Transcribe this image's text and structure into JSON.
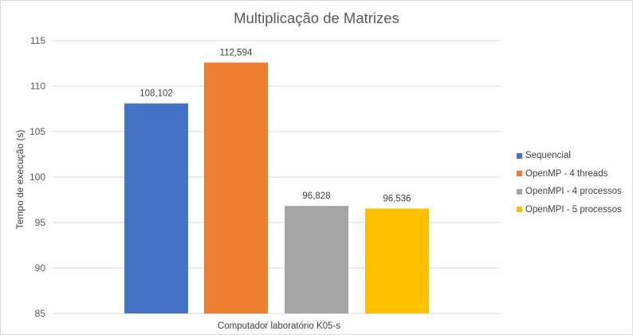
{
  "chart_data": {
    "type": "bar",
    "title": "Multiplicação de Matrizes",
    "xlabel": "",
    "ylabel": "Tempo de execução (s)",
    "categories": [
      "Computador laboratório K05-s"
    ],
    "series": [
      {
        "name": "Sequencial",
        "values": [
          108.102
        ],
        "label": "108,102",
        "color": "#4472C4"
      },
      {
        "name": "OpenMP - 4 threads",
        "values": [
          112.594
        ],
        "label": "112,594",
        "color": "#ED7D31"
      },
      {
        "name": "OpenMPI - 4 processos",
        "values": [
          96.828
        ],
        "label": "96,828",
        "color": "#A5A5A5"
      },
      {
        "name": "OpenMPI - 5 processos",
        "values": [
          96.536
        ],
        "label": "96,536",
        "color": "#FFC000"
      }
    ],
    "ylim": [
      85,
      115
    ],
    "yticks": [
      85,
      90,
      95,
      100,
      105,
      110,
      115
    ],
    "grid": true,
    "legend_position": "right"
  }
}
